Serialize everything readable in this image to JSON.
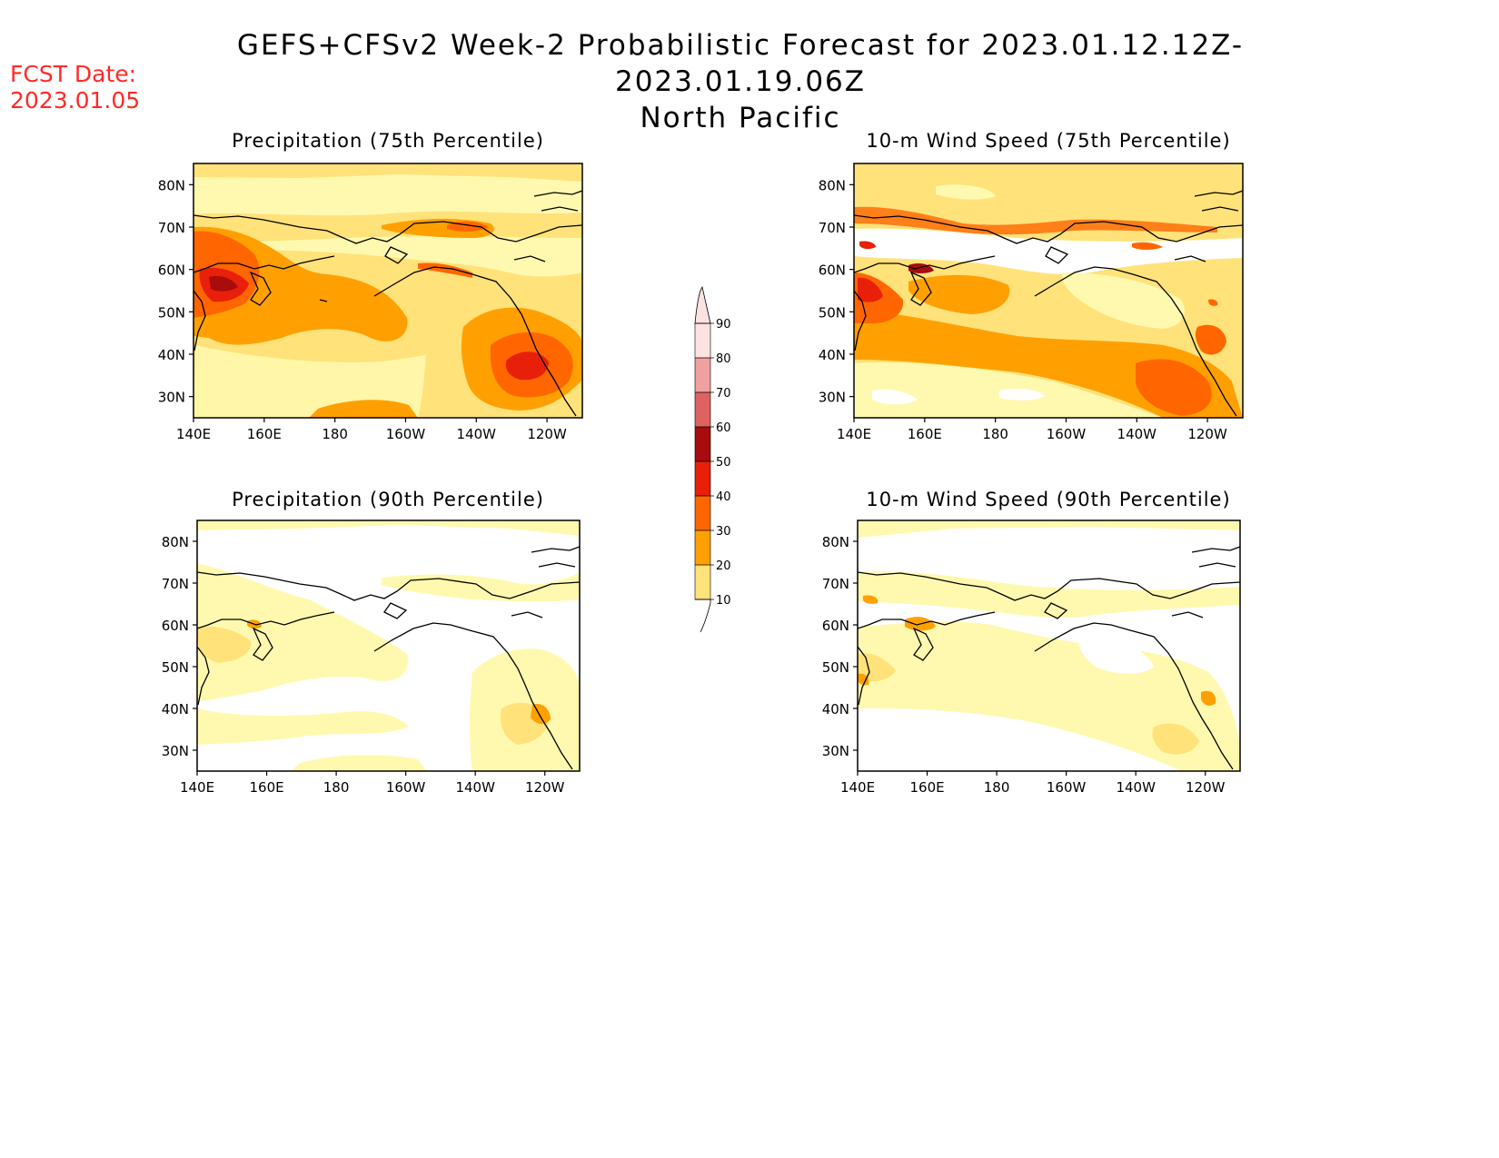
{
  "header": {
    "fcst_date_label": "FCST Date:",
    "fcst_date_value": "2023.01.05",
    "title_line1": "GEFS+CFSv2 Week-2 Probabilistic Forecast for 2023.01.12.12Z-2023.01.19.06Z",
    "title_line2": "North Pacific"
  },
  "colorbar": {
    "levels": [
      "10",
      "20",
      "30",
      "40",
      "50",
      "60",
      "70",
      "80",
      "90"
    ],
    "colors": [
      "#fff9b0",
      "#ffe27a",
      "#ffa000",
      "#ff6600",
      "#e8200a",
      "#a80c0c",
      "#de6262",
      "#f0a0a0",
      "#fde2e2"
    ]
  },
  "axes": {
    "lon_labels": [
      "140E",
      "160E",
      "180",
      "160W",
      "140W",
      "120W"
    ],
    "lat_labels": [
      "80N",
      "70N",
      "60N",
      "50N",
      "40N",
      "30N"
    ]
  },
  "panels": [
    {
      "title": "Precipitation (75th Percentile)"
    },
    {
      "title": "10-m Wind Speed (75th Percentile)"
    },
    {
      "title": "Precipitation (90th Percentile)"
    },
    {
      "title": "10-m Wind Speed (90th Percentile)"
    }
  ]
}
